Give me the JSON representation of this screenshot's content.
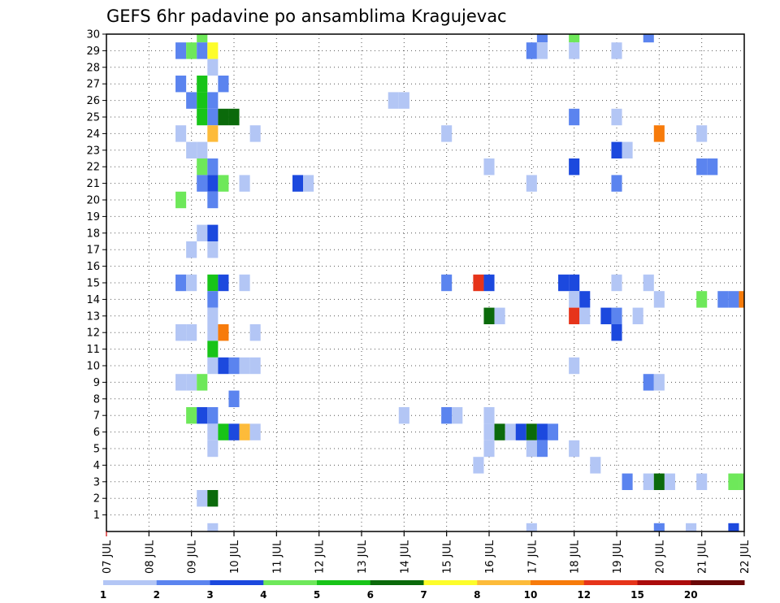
{
  "chart_data": {
    "type": "heatmap",
    "title": "GEFS 6hr padavine po ansamblima Kragujevac",
    "xlabel": "",
    "ylabel": "",
    "x_range": [
      0,
      60
    ],
    "x_ticks": [
      {
        "x": 0,
        "label": "07 JUL"
      },
      {
        "x": 4,
        "label": "08 JUL"
      },
      {
        "x": 8,
        "label": "09 JUL"
      },
      {
        "x": 12,
        "label": "10 JUL"
      },
      {
        "x": 16,
        "label": "11 JUL"
      },
      {
        "x": 20,
        "label": "12 JUL"
      },
      {
        "x": 24,
        "label": "13 JUL"
      },
      {
        "x": 28,
        "label": "14 JUL"
      },
      {
        "x": 32,
        "label": "15 JUL"
      },
      {
        "x": 36,
        "label": "16 JUL"
      },
      {
        "x": 40,
        "label": "17 JUL"
      },
      {
        "x": 44,
        "label": "18 JUL"
      },
      {
        "x": 48,
        "label": "19 JUL"
      },
      {
        "x": 52,
        "label": "20 JUL"
      },
      {
        "x": 56,
        "label": "21 JUL"
      },
      {
        "x": 60,
        "label": "22 JUL"
      }
    ],
    "y_range": [
      0,
      30
    ],
    "y_ticks": [
      "1",
      "2",
      "3",
      "4",
      "5",
      "6",
      "7",
      "8",
      "9",
      "10",
      "11",
      "12",
      "13",
      "14",
      "15",
      "16",
      "17",
      "18",
      "19",
      "20",
      "21",
      "22",
      "23",
      "24",
      "25",
      "26",
      "27",
      "28",
      "29",
      "30"
    ],
    "grid": true,
    "legend": {
      "placement": "bottom",
      "labels": [
        "1",
        "2",
        "3",
        "4",
        "5",
        "6",
        "7",
        "8",
        "10",
        "12",
        "15",
        "20"
      ],
      "colors": [
        "#b3c6f5",
        "#5b84ef",
        "#1c49de",
        "#6ee85a",
        "#18c418",
        "#0b6a0b",
        "#fdfd2a",
        "#fdbb3a",
        "#f77b0b",
        "#e6341a",
        "#ac0c0c",
        "#6a0707"
      ]
    },
    "cells": [
      [
        9,
        30,
        3
      ],
      [
        41,
        30,
        1
      ],
      [
        44,
        30,
        3
      ],
      [
        51,
        30,
        1
      ],
      [
        7,
        29,
        1
      ],
      [
        8,
        29,
        3
      ],
      [
        9,
        29,
        1
      ],
      [
        10,
        29,
        6
      ],
      [
        40,
        29,
        1
      ],
      [
        41,
        29,
        0
      ],
      [
        44,
        29,
        0
      ],
      [
        48,
        29,
        0
      ],
      [
        10,
        28,
        0
      ],
      [
        7,
        27,
        1
      ],
      [
        9,
        27,
        4
      ],
      [
        11,
        27,
        1
      ],
      [
        8,
        26,
        1
      ],
      [
        9,
        26,
        4
      ],
      [
        10,
        26,
        1
      ],
      [
        27,
        26,
        0
      ],
      [
        28,
        26,
        0
      ],
      [
        9,
        25,
        4
      ],
      [
        10,
        25,
        1
      ],
      [
        11,
        25,
        5
      ],
      [
        12,
        25,
        5
      ],
      [
        44,
        25,
        1
      ],
      [
        48,
        25,
        0
      ],
      [
        7,
        24,
        0
      ],
      [
        10,
        24,
        7
      ],
      [
        14,
        24,
        0
      ],
      [
        32,
        24,
        0
      ],
      [
        52,
        24,
        8
      ],
      [
        56,
        24,
        0
      ],
      [
        8,
        23,
        0
      ],
      [
        9,
        23,
        0
      ],
      [
        48,
        23,
        2
      ],
      [
        49,
        23,
        0
      ],
      [
        9,
        22,
        3
      ],
      [
        10,
        22,
        1
      ],
      [
        36,
        22,
        0
      ],
      [
        44,
        22,
        2
      ],
      [
        56,
        22,
        1
      ],
      [
        57,
        22,
        1
      ],
      [
        9,
        21,
        1
      ],
      [
        10,
        21,
        2
      ],
      [
        11,
        21,
        3
      ],
      [
        13,
        21,
        0
      ],
      [
        18,
        21,
        2
      ],
      [
        19,
        21,
        0
      ],
      [
        40,
        21,
        0
      ],
      [
        48,
        21,
        1
      ],
      [
        7,
        20,
        3
      ],
      [
        10,
        20,
        1
      ],
      [
        9,
        18,
        0
      ],
      [
        10,
        18,
        2
      ],
      [
        8,
        17,
        0
      ],
      [
        10,
        17,
        0
      ],
      [
        7,
        15,
        1
      ],
      [
        8,
        15,
        0
      ],
      [
        10,
        15,
        4
      ],
      [
        11,
        15,
        2
      ],
      [
        13,
        15,
        0
      ],
      [
        32,
        15,
        1
      ],
      [
        35,
        15,
        9
      ],
      [
        36,
        15,
        2
      ],
      [
        43,
        15,
        2
      ],
      [
        44,
        15,
        2
      ],
      [
        48,
        15,
        0
      ],
      [
        51,
        15,
        0
      ],
      [
        10,
        14,
        1
      ],
      [
        44,
        14,
        0
      ],
      [
        45,
        14,
        2
      ],
      [
        52,
        14,
        0
      ],
      [
        56,
        14,
        3
      ],
      [
        58,
        14,
        1
      ],
      [
        59,
        14,
        1
      ],
      [
        60,
        14,
        8
      ],
      [
        10,
        13,
        0
      ],
      [
        36,
        13,
        5
      ],
      [
        37,
        13,
        0
      ],
      [
        44,
        13,
        9
      ],
      [
        45,
        13,
        0
      ],
      [
        47,
        13,
        2
      ],
      [
        48,
        13,
        1
      ],
      [
        50,
        13,
        0
      ],
      [
        7,
        12,
        0
      ],
      [
        8,
        12,
        0
      ],
      [
        10,
        12,
        0
      ],
      [
        11,
        12,
        8
      ],
      [
        14,
        12,
        0
      ],
      [
        48,
        12,
        2
      ],
      [
        10,
        11,
        4
      ],
      [
        10,
        10,
        0
      ],
      [
        11,
        10,
        2
      ],
      [
        12,
        10,
        1
      ],
      [
        13,
        10,
        0
      ],
      [
        14,
        10,
        0
      ],
      [
        44,
        10,
        0
      ],
      [
        7,
        9,
        0
      ],
      [
        8,
        9,
        0
      ],
      [
        9,
        9,
        3
      ],
      [
        51,
        9,
        1
      ],
      [
        52,
        9,
        0
      ],
      [
        12,
        8,
        1
      ],
      [
        8,
        7,
        3
      ],
      [
        9,
        7,
        2
      ],
      [
        10,
        7,
        1
      ],
      [
        28,
        7,
        0
      ],
      [
        32,
        7,
        1
      ],
      [
        33,
        7,
        0
      ],
      [
        36,
        7,
        0
      ],
      [
        10,
        6,
        0
      ],
      [
        11,
        6,
        4
      ],
      [
        12,
        6,
        2
      ],
      [
        13,
        6,
        7
      ],
      [
        14,
        6,
        0
      ],
      [
        36,
        6,
        0
      ],
      [
        37,
        6,
        5
      ],
      [
        38,
        6,
        0
      ],
      [
        39,
        6,
        2
      ],
      [
        40,
        6,
        5
      ],
      [
        41,
        6,
        2
      ],
      [
        42,
        6,
        1
      ],
      [
        10,
        5,
        0
      ],
      [
        36,
        5,
        0
      ],
      [
        40,
        5,
        0
      ],
      [
        41,
        5,
        1
      ],
      [
        44,
        5,
        0
      ],
      [
        35,
        4,
        0
      ],
      [
        46,
        4,
        0
      ],
      [
        49,
        3,
        1
      ],
      [
        51,
        3,
        0
      ],
      [
        52,
        3,
        5
      ],
      [
        53,
        3,
        0
      ],
      [
        56,
        3,
        0
      ],
      [
        59,
        3,
        3
      ],
      [
        60,
        3,
        3
      ],
      [
        9,
        2,
        0
      ],
      [
        10,
        2,
        5
      ],
      [
        10,
        0,
        0
      ],
      [
        40,
        0,
        0
      ],
      [
        52,
        0,
        1
      ],
      [
        55,
        0,
        0
      ],
      [
        59,
        0,
        2
      ]
    ]
  }
}
